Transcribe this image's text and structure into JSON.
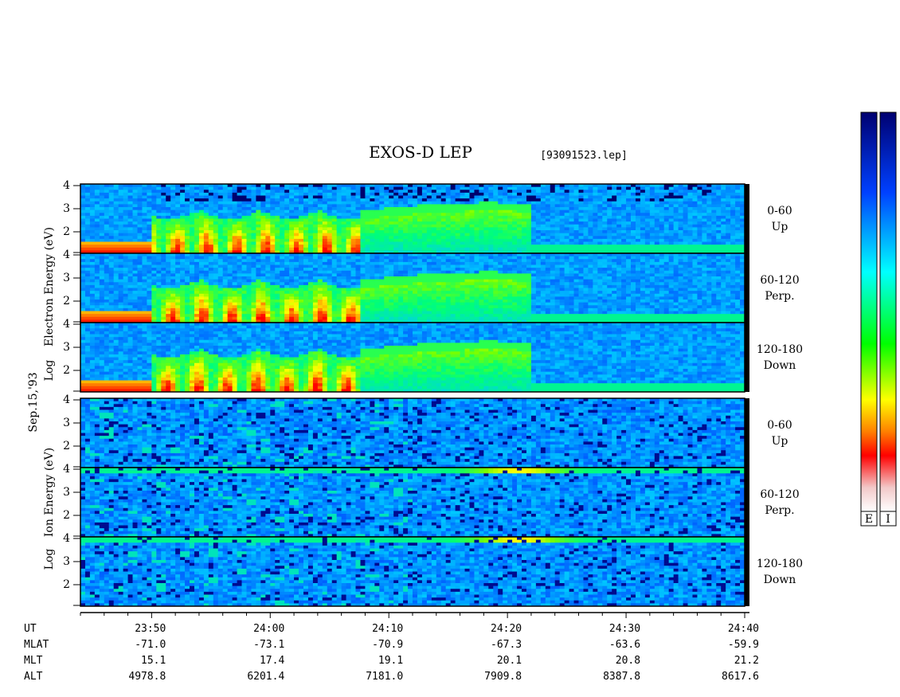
{
  "title": "EXOS-D LEP",
  "file_label": "[93091523.lep]",
  "date_label": "Sep.15,'93",
  "electron_axis_label": "Electron  Energy (eV)",
  "electron_axis_prefix": "Log",
  "ion_axis_label": "Ion  Energy (eV)",
  "ion_axis_prefix": "Log",
  "colorbar_labels": [
    "E",
    "I"
  ],
  "colorbar_colors": [
    "#ffffff",
    "#f0c0c0",
    "#ff0000",
    "#ff8000",
    "#ffff00",
    "#00ff00",
    "#00ffff",
    "#0000ff",
    "#000080"
  ],
  "chart_data": {
    "type": "heatmap",
    "title": "EXOS-D LEP",
    "x_axis": {
      "label": "UT",
      "ticks": [
        "23:50",
        "24:00",
        "24:10",
        "24:20",
        "24:30",
        "24:40"
      ],
      "range_minutes": [
        0,
        56
      ]
    },
    "rows": [
      {
        "name": "MLAT",
        "values": [
          "-71.0",
          "-73.1",
          "-70.9",
          "-67.3",
          "-63.6",
          "-59.9"
        ]
      },
      {
        "name": "MLT",
        "values": [
          "15.1",
          "17.4",
          "19.1",
          "20.1",
          "20.8",
          "21.2"
        ]
      },
      {
        "name": "ALT",
        "values": [
          "4978.8",
          "6201.4",
          "7181.0",
          "7909.8",
          "8387.8",
          "8617.6"
        ]
      }
    ],
    "y_axis": {
      "scale": "log",
      "ticks": [
        "4",
        "3",
        "2"
      ],
      "range": [
        1,
        4
      ]
    },
    "panels": [
      {
        "species": "electron",
        "pitch_angle": "0-60",
        "direction": "Up"
      },
      {
        "species": "electron",
        "pitch_angle": "60-120",
        "direction": "Perp."
      },
      {
        "species": "electron",
        "pitch_angle": "120-180",
        "direction": "Down"
      },
      {
        "species": "ion",
        "pitch_angle": "0-60",
        "direction": "Up"
      },
      {
        "species": "ion",
        "pitch_angle": "60-120",
        "direction": "Perp."
      },
      {
        "species": "ion",
        "pitch_angle": "120-180",
        "direction": "Down"
      }
    ]
  }
}
